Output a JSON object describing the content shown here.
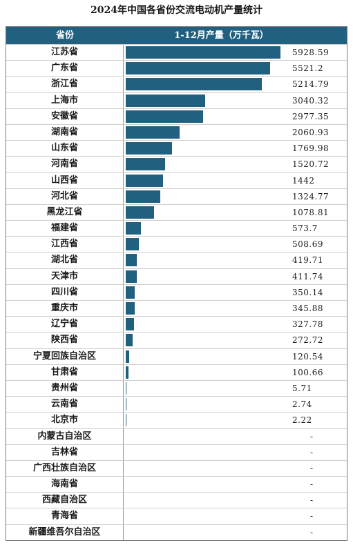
{
  "chart_data": {
    "type": "bar",
    "title": "2024年中国各省份交流电动机产量统计",
    "header": {
      "category": "省份",
      "value": "1-12月产量（万千瓦）"
    },
    "colors": {
      "bar": "#22607f",
      "header_bg": "#22607f"
    },
    "categories": [
      "江苏省",
      "广东省",
      "浙江省",
      "上海市",
      "安徽省",
      "湖南省",
      "山东省",
      "河南省",
      "山西省",
      "河北省",
      "黑龙江省",
      "福建省",
      "江西省",
      "湖北省",
      "天津市",
      "四川省",
      "重庆市",
      "辽宁省",
      "陕西省",
      "宁夏回族自治区",
      "甘肃省",
      "贵州省",
      "云南省",
      "北京市",
      "内蒙古自治区",
      "吉林省",
      "广西壮族自治区",
      "海南省",
      "西藏自治区",
      "青海省",
      "新疆维吾尔自治区"
    ],
    "values": [
      5928.59,
      5521.2,
      5214.79,
      3040.32,
      2977.35,
      2060.93,
      1769.98,
      1520.72,
      1442,
      1324.77,
      1078.81,
      573.7,
      508.69,
      419.71,
      411.74,
      350.14,
      345.88,
      327.78,
      272.72,
      120.54,
      100.66,
      5.71,
      2.74,
      2.22,
      null,
      null,
      null,
      null,
      null,
      null,
      null
    ],
    "labels": [
      "5928.59",
      "5521.2",
      "5214.79",
      "3040.32",
      "2977.35",
      "2060.93",
      "1769.98",
      "1520.72",
      "1442",
      "1324.77",
      "1078.81",
      "573.7",
      "508.69",
      "419.71",
      "411.74",
      "350.14",
      "345.88",
      "327.78",
      "272.72",
      "120.54",
      "100.66",
      "5.71",
      "2.74",
      "2.22",
      "-",
      "-",
      "-",
      "-",
      "-",
      "-",
      "-"
    ],
    "xlim": [
      0,
      5928.59
    ]
  }
}
